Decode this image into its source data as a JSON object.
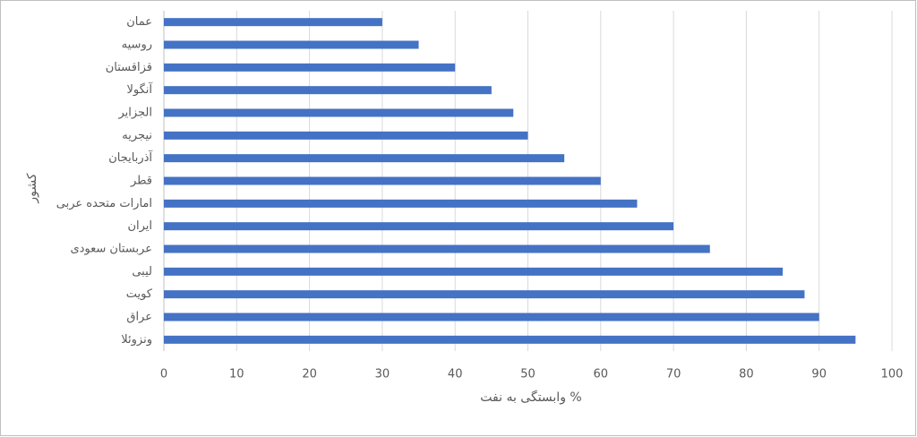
{
  "chart_data": {
    "type": "bar",
    "orientation": "horizontal",
    "categories": [
      "عمان",
      "روسیه",
      "قزاقستان",
      "آنگولا",
      "الجزایر",
      "نیجریه",
      "آذربایجان",
      "قطر",
      "امارات متحده عربی",
      "ایران",
      "عربستان سعودی",
      "لیبی",
      "کویت",
      "عراق",
      "ونزوئلا"
    ],
    "values": [
      30,
      35,
      40,
      45,
      48,
      50,
      55,
      60,
      65,
      70,
      75,
      85,
      88,
      90,
      95
    ],
    "color": "#4472c4",
    "xlabel": "وابستگی به نفت %",
    "ylabel": "کشور",
    "xlim": [
      0,
      100
    ],
    "xticks": [
      0,
      10,
      20,
      30,
      40,
      50,
      60,
      70,
      80,
      90,
      100
    ],
    "grid": true
  }
}
